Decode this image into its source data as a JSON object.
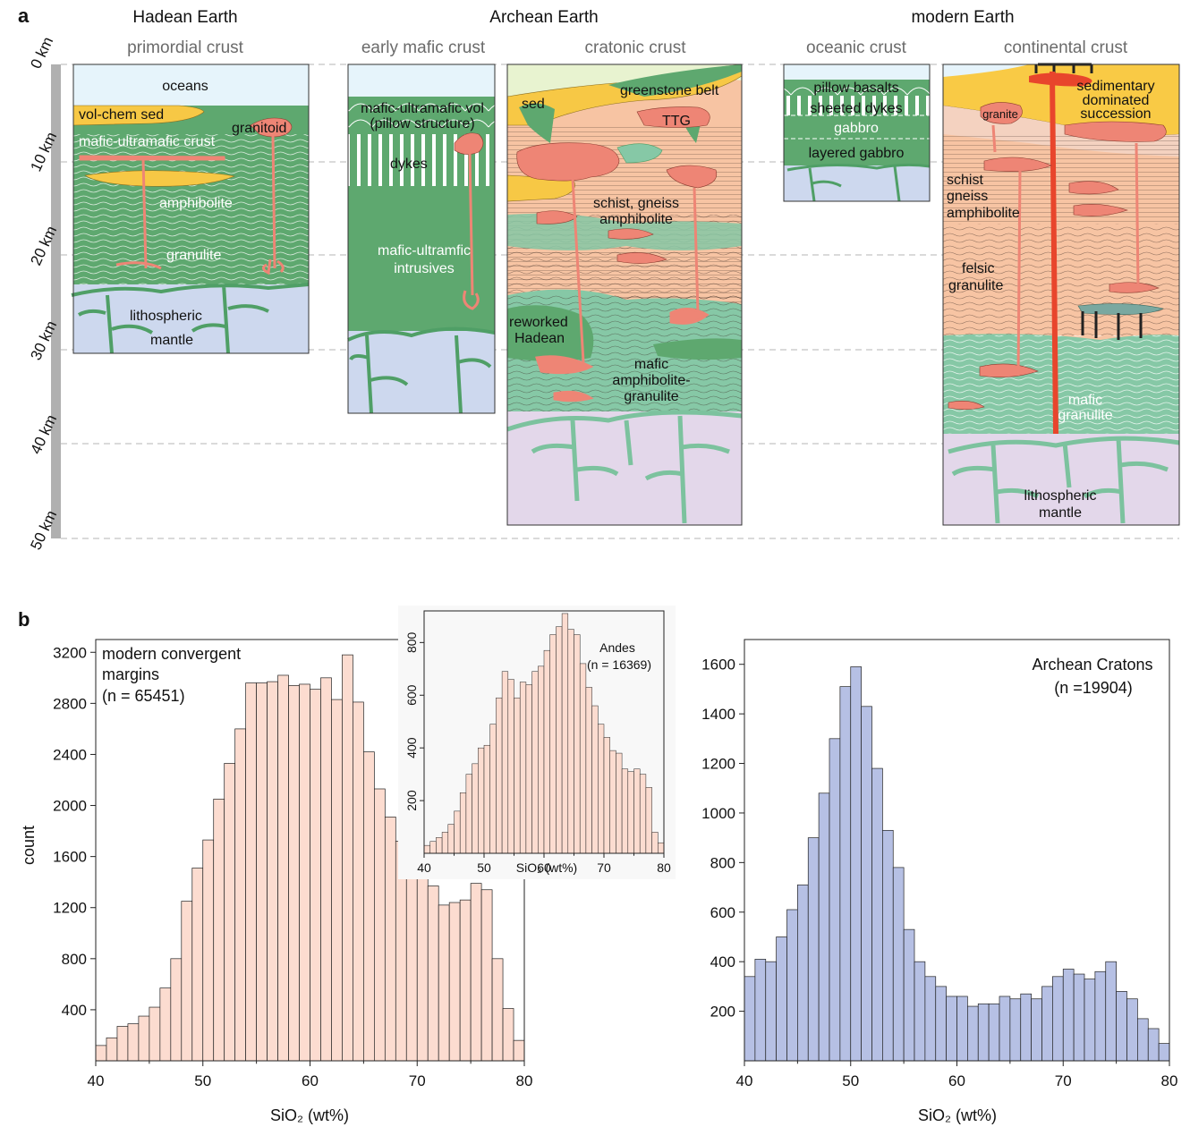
{
  "panel_a": {
    "letter": "a",
    "eras": [
      "Hadean Earth",
      "Archean Earth",
      "modern Earth"
    ],
    "columns": [
      "primordial crust",
      "early mafic crust",
      "cratonic crust",
      "oceanic crust",
      "continental crust"
    ],
    "depth_ticks": [
      "0 km",
      "10 km",
      "20 km",
      "30 km",
      "40 km",
      "50 km"
    ],
    "labels": {
      "oceans": "oceans",
      "vol_chem_sed": "vol-chem sed",
      "granitoid": "granitoid",
      "mafic_ultramafic_crust": "mafic-ultramafic crust",
      "amphibolite": "amphibolite",
      "granulite": "granulite",
      "lith_mantle_1": "lithospheric",
      "lith_mantle_2": "mantle",
      "mafic_vol_1": "mafic-ultramafic vol",
      "mafic_vol_2": "(pillow structure)",
      "dykes": "dykes",
      "intrusives_1": "mafic-ultramfic",
      "intrusives_2": "intrusives",
      "sed": "sed",
      "greenstone": "greenstone belt",
      "ttg": "TTG",
      "schist_gneiss_1": "schist, gneiss",
      "schist_gneiss_2": "amphibolite",
      "reworked_1": "reworked",
      "reworked_2": "Hadean",
      "mafic_amph_1": "mafic",
      "mafic_amph_2": "amphibolite-",
      "mafic_amph_3": "granulite",
      "pillow_basalts": "pillow basalts",
      "sheeted_dykes": "sheeted dykes",
      "gabbro": "gabbro",
      "layered_gabbro": "layered gabbro",
      "granite": "granite",
      "sedim_1": "sedimentary",
      "sedim_2": "dominated",
      "sedim_3": "succession",
      "sga_1": "schist",
      "sga_2": "gneiss",
      "sga_3": "amphibolite",
      "felsic_1": "felsic",
      "felsic_2": "granulite",
      "mafic_gran_1": "mafic",
      "mafic_gran_2": "granulite",
      "cont_mantle_1": "lithospheric",
      "cont_mantle_2": "mantle"
    }
  },
  "panel_b": {
    "letter": "b",
    "y_axis_label": "count",
    "x_axis_label": "SiO₂ (wt%)"
  },
  "chart_data": [
    {
      "type": "bar",
      "name": "modern convergent margins",
      "legend_lines": [
        "modern convergent",
        "margins",
        "(n = 65451)"
      ],
      "bin_width": 1,
      "bin_starts": [
        40,
        41,
        42,
        43,
        44,
        45,
        46,
        47,
        48,
        49,
        50,
        51,
        52,
        53,
        54,
        55,
        56,
        57,
        58,
        59,
        60,
        61,
        62,
        63,
        64,
        65,
        66,
        67,
        68,
        69,
        70,
        71,
        72,
        73,
        74,
        75,
        76,
        77,
        78,
        79
      ],
      "values": [
        120,
        180,
        270,
        290,
        350,
        420,
        570,
        800,
        1250,
        1510,
        1730,
        2050,
        2330,
        2600,
        2960,
        2960,
        2970,
        3020,
        2940,
        2950,
        2910,
        3000,
        2830,
        3180,
        2810,
        2420,
        2130,
        1910,
        1720,
        1560,
        1490,
        1370,
        1220,
        1240,
        1260,
        1390,
        1340,
        800,
        410,
        160
      ],
      "xlabel": "SiO₂ (wt%)",
      "ylabel": "count",
      "xlim": [
        40,
        80
      ],
      "ylim": [
        0,
        3300
      ],
      "x_ticks": [
        40,
        50,
        60,
        70,
        80
      ],
      "y_ticks": [
        400,
        800,
        1200,
        1600,
        2000,
        2400,
        2800,
        3200
      ],
      "color": "#fcdcd0"
    },
    {
      "type": "bar",
      "name": "Andes",
      "inset": true,
      "legend_lines": [
        "Andes",
        "(n = 16369)"
      ],
      "bin_width": 1,
      "bin_starts": [
        40,
        41,
        42,
        43,
        44,
        45,
        46,
        47,
        48,
        49,
        50,
        51,
        52,
        53,
        54,
        55,
        56,
        57,
        58,
        59,
        60,
        61,
        62,
        63,
        64,
        65,
        66,
        67,
        68,
        69,
        70,
        71,
        72,
        73,
        74,
        75,
        76,
        77,
        78,
        79
      ],
      "values": [
        30,
        45,
        60,
        80,
        110,
        160,
        230,
        300,
        340,
        400,
        410,
        490,
        590,
        690,
        660,
        590,
        650,
        640,
        690,
        710,
        770,
        830,
        860,
        910,
        850,
        830,
        720,
        630,
        560,
        490,
        440,
        390,
        380,
        320,
        310,
        320,
        300,
        250,
        80,
        40
      ],
      "xlabel": "SiO₂ (wt%)",
      "xlim": [
        40,
        80
      ],
      "ylim": [
        0,
        920
      ],
      "x_ticks": [
        40,
        50,
        60,
        70,
        80
      ],
      "y_ticks": [
        200,
        400,
        600,
        800
      ],
      "color": "#fcdcd0"
    },
    {
      "type": "bar",
      "name": "Archean Cratons",
      "legend_lines": [
        "Archean Cratons",
        "(n =19904)"
      ],
      "bin_width": 1,
      "bin_starts": [
        40,
        41,
        42,
        43,
        44,
        45,
        46,
        47,
        48,
        49,
        50,
        51,
        52,
        53,
        54,
        55,
        56,
        57,
        58,
        59,
        60,
        61,
        62,
        63,
        64,
        65,
        66,
        67,
        68,
        69,
        70,
        71,
        72,
        73,
        74,
        75,
        76,
        77,
        78,
        79
      ],
      "values": [
        340,
        410,
        400,
        500,
        610,
        710,
        900,
        1080,
        1300,
        1510,
        1590,
        1430,
        1180,
        930,
        780,
        530,
        400,
        340,
        300,
        260,
        260,
        220,
        230,
        230,
        260,
        250,
        270,
        250,
        300,
        340,
        370,
        350,
        330,
        360,
        400,
        280,
        250,
        170,
        130,
        70
      ],
      "xlabel": "SiO₂ (wt%)",
      "xlim": [
        40,
        80
      ],
      "ylim": [
        0,
        1700
      ],
      "x_ticks": [
        40,
        50,
        60,
        70,
        80
      ],
      "y_ticks": [
        200,
        400,
        600,
        800,
        1000,
        1200,
        1400,
        1600
      ],
      "color": "#b6c0e4"
    }
  ]
}
